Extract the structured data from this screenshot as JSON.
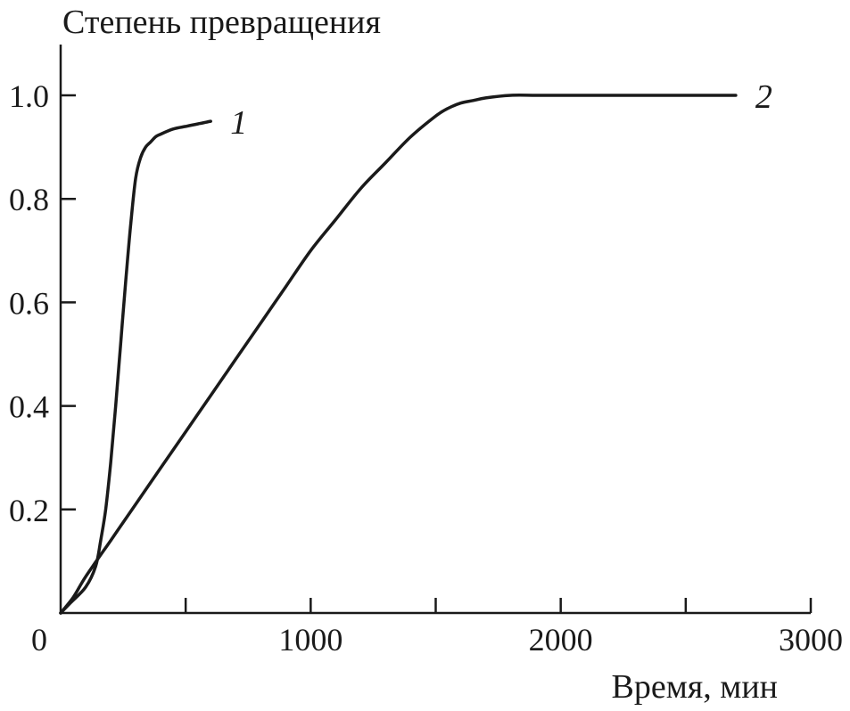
{
  "chart_data": {
    "type": "line",
    "ylabel": "Степень превращения",
    "xlabel": "Время, мин",
    "xlim": [
      0,
      3000
    ],
    "ylim": [
      0,
      1.1
    ],
    "x_ticks": [
      0,
      500,
      1000,
      1500,
      2000,
      2500,
      3000
    ],
    "x_tick_labels": [
      "0",
      "",
      "1000",
      "",
      "2000",
      "",
      "3000"
    ],
    "y_ticks": [
      0.2,
      0.4,
      0.6,
      0.8,
      1.0
    ],
    "y_tick_labels": [
      "0.2",
      "0.4",
      "0.6",
      "0.8",
      "1.0"
    ],
    "grid": false,
    "series": [
      {
        "label": "1",
        "x": [
          0,
          40,
          100,
          140,
          160,
          180,
          200,
          220,
          240,
          260,
          280,
          300,
          320,
          340,
          360,
          380,
          400,
          450,
          500,
          550,
          600
        ],
        "y": [
          0,
          0.02,
          0.05,
          0.09,
          0.14,
          0.2,
          0.29,
          0.4,
          0.52,
          0.64,
          0.75,
          0.84,
          0.88,
          0.9,
          0.91,
          0.92,
          0.925,
          0.935,
          0.94,
          0.945,
          0.95
        ]
      },
      {
        "label": "2",
        "x": [
          0,
          50,
          100,
          200,
          300,
          400,
          500,
          600,
          700,
          800,
          900,
          1000,
          1100,
          1200,
          1300,
          1400,
          1500,
          1550,
          1600,
          1650,
          1700,
          1800,
          1900,
          2000,
          2200,
          2500,
          2700
        ],
        "y": [
          0,
          0.03,
          0.07,
          0.14,
          0.21,
          0.28,
          0.35,
          0.42,
          0.49,
          0.56,
          0.63,
          0.7,
          0.76,
          0.82,
          0.87,
          0.92,
          0.96,
          0.975,
          0.985,
          0.99,
          0.995,
          1.0,
          1.0,
          1.0,
          1.0,
          1.0,
          1.0
        ]
      }
    ]
  }
}
